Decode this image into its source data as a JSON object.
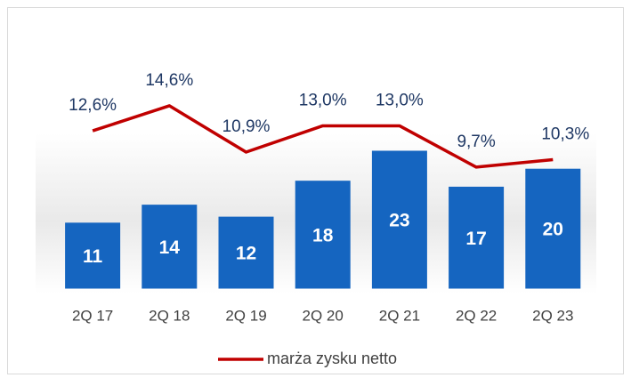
{
  "chart_data": {
    "type": "combo",
    "categories": [
      "2Q 17",
      "2Q 18",
      "2Q 19",
      "2Q 20",
      "2Q 21",
      "2Q 22",
      "2Q 23"
    ],
    "series": [
      {
        "type": "bar",
        "color": "#1565c0",
        "values": [
          11,
          14,
          12,
          18,
          23,
          17,
          20
        ]
      },
      {
        "type": "line",
        "name": "marża zysku netto",
        "color": "#c00000",
        "values": [
          12.6,
          14.6,
          10.9,
          13.0,
          13.0,
          9.7,
          10.3
        ],
        "value_labels": [
          "12,6%",
          "14,6%",
          "10,9%",
          "13,0%",
          "13,0%",
          "9,7%",
          "10,3%"
        ]
      }
    ]
  }
}
